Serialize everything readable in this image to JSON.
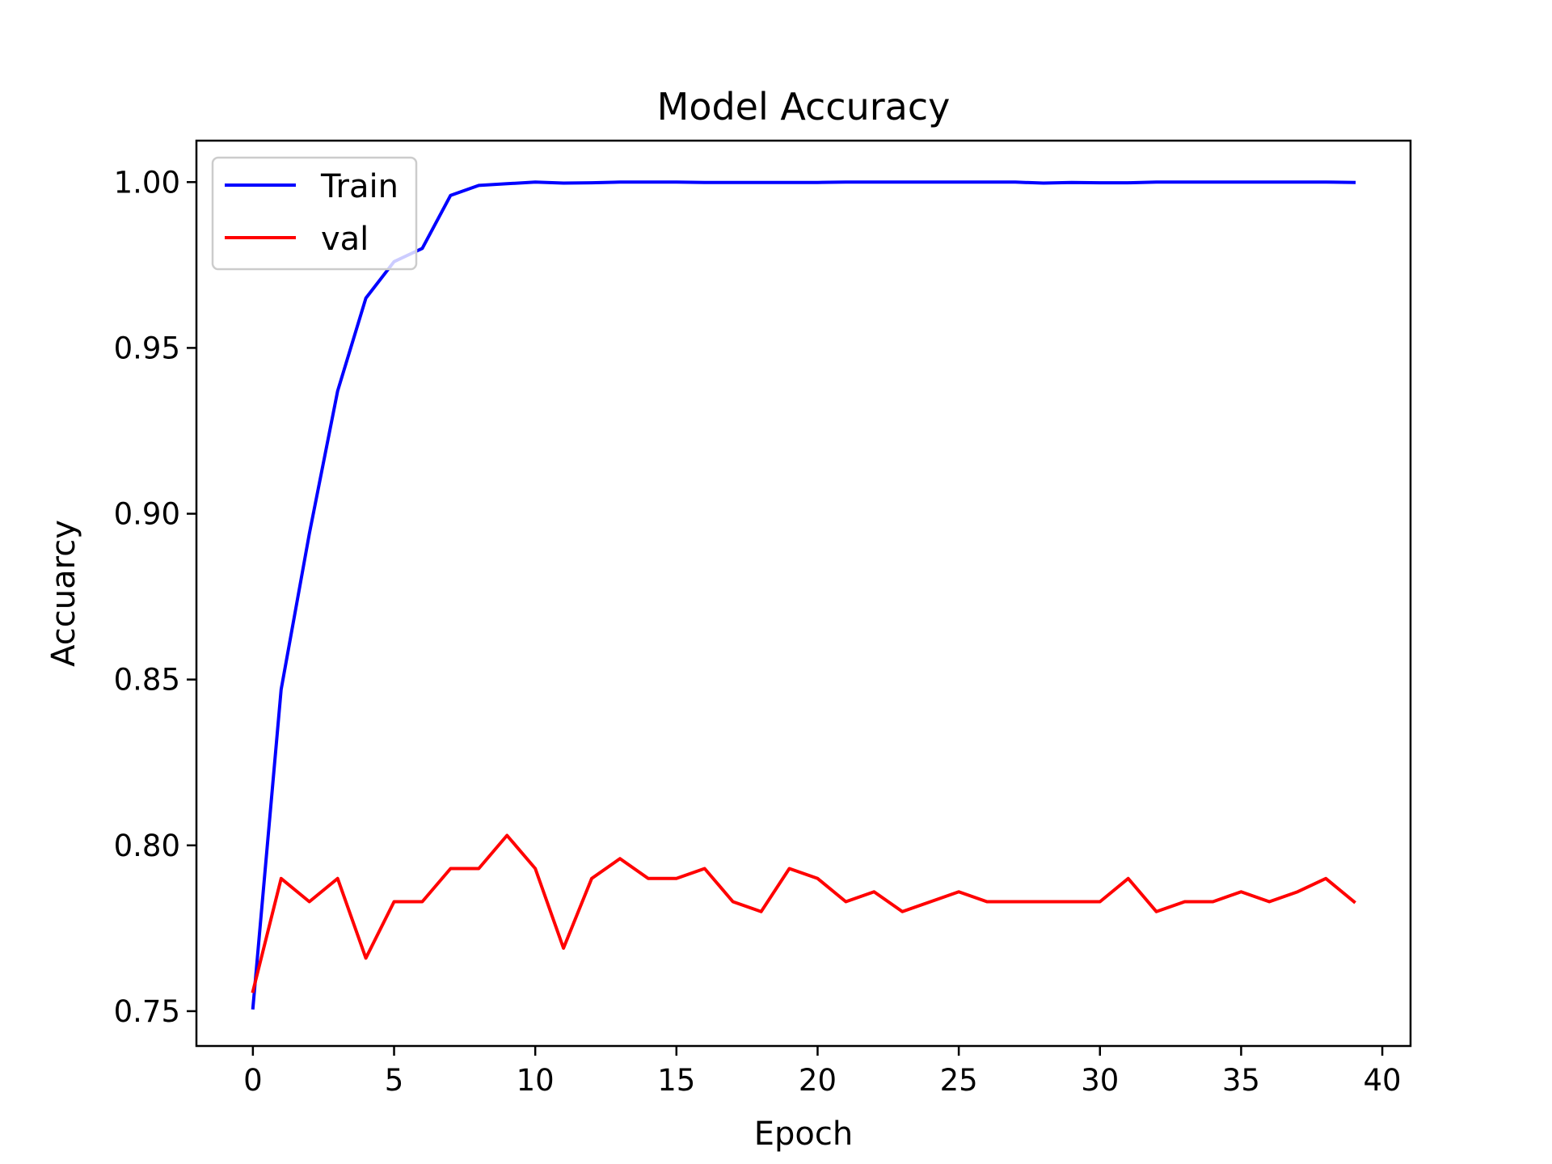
{
  "chart_data": {
    "type": "line",
    "title": "Model Accuracy",
    "xlabel": "Epoch",
    "ylabel": "Accuarcy",
    "xlim": [
      -2,
      41
    ],
    "ylim": [
      0.7395,
      1.0125
    ],
    "xticks": [
      0,
      5,
      10,
      15,
      20,
      25,
      30,
      35,
      40
    ],
    "xtick_labels": [
      "0",
      "5",
      "10",
      "15",
      "20",
      "25",
      "30",
      "35",
      "40"
    ],
    "yticks": [
      0.75,
      0.8,
      0.85,
      0.9,
      0.95,
      1.0
    ],
    "ytick_labels": [
      "0.75",
      "0.80",
      "0.85",
      "0.90",
      "0.95",
      "1.00"
    ],
    "grid": false,
    "legend_position": "top-left",
    "x": [
      0,
      1,
      2,
      3,
      4,
      5,
      6,
      7,
      8,
      9,
      10,
      11,
      12,
      13,
      14,
      15,
      16,
      17,
      18,
      19,
      20,
      21,
      22,
      23,
      24,
      25,
      26,
      27,
      28,
      29,
      30,
      31,
      32,
      33,
      34,
      35,
      36,
      37,
      38,
      39
    ],
    "series": [
      {
        "name": "Train",
        "color": "#0000ff",
        "values": [
          0.751,
          0.847,
          0.894,
          0.937,
          0.965,
          0.976,
          0.98,
          0.996,
          0.999,
          0.9995,
          1.0,
          0.9997,
          0.9998,
          1.0,
          1.0,
          1.0,
          0.9999,
          0.9999,
          0.9999,
          0.9999,
          0.9999,
          1.0,
          1.0,
          1.0,
          1.0,
          1.0,
          1.0,
          1.0,
          0.9997,
          0.9999,
          0.9998,
          0.9998,
          1.0,
          1.0,
          1.0,
          1.0,
          1.0,
          1.0,
          1.0,
          0.9999
        ]
      },
      {
        "name": "val",
        "color": "#ff0000",
        "values": [
          0.756,
          0.79,
          0.783,
          0.79,
          0.766,
          0.783,
          0.783,
          0.793,
          0.793,
          0.803,
          0.793,
          0.769,
          0.79,
          0.796,
          0.79,
          0.79,
          0.793,
          0.783,
          0.78,
          0.793,
          0.79,
          0.783,
          0.786,
          0.78,
          0.783,
          0.786,
          0.783,
          0.783,
          0.783,
          0.783,
          0.783,
          0.79,
          0.78,
          0.783,
          0.783,
          0.786,
          0.783,
          0.786,
          0.79,
          0.783
        ]
      }
    ]
  }
}
